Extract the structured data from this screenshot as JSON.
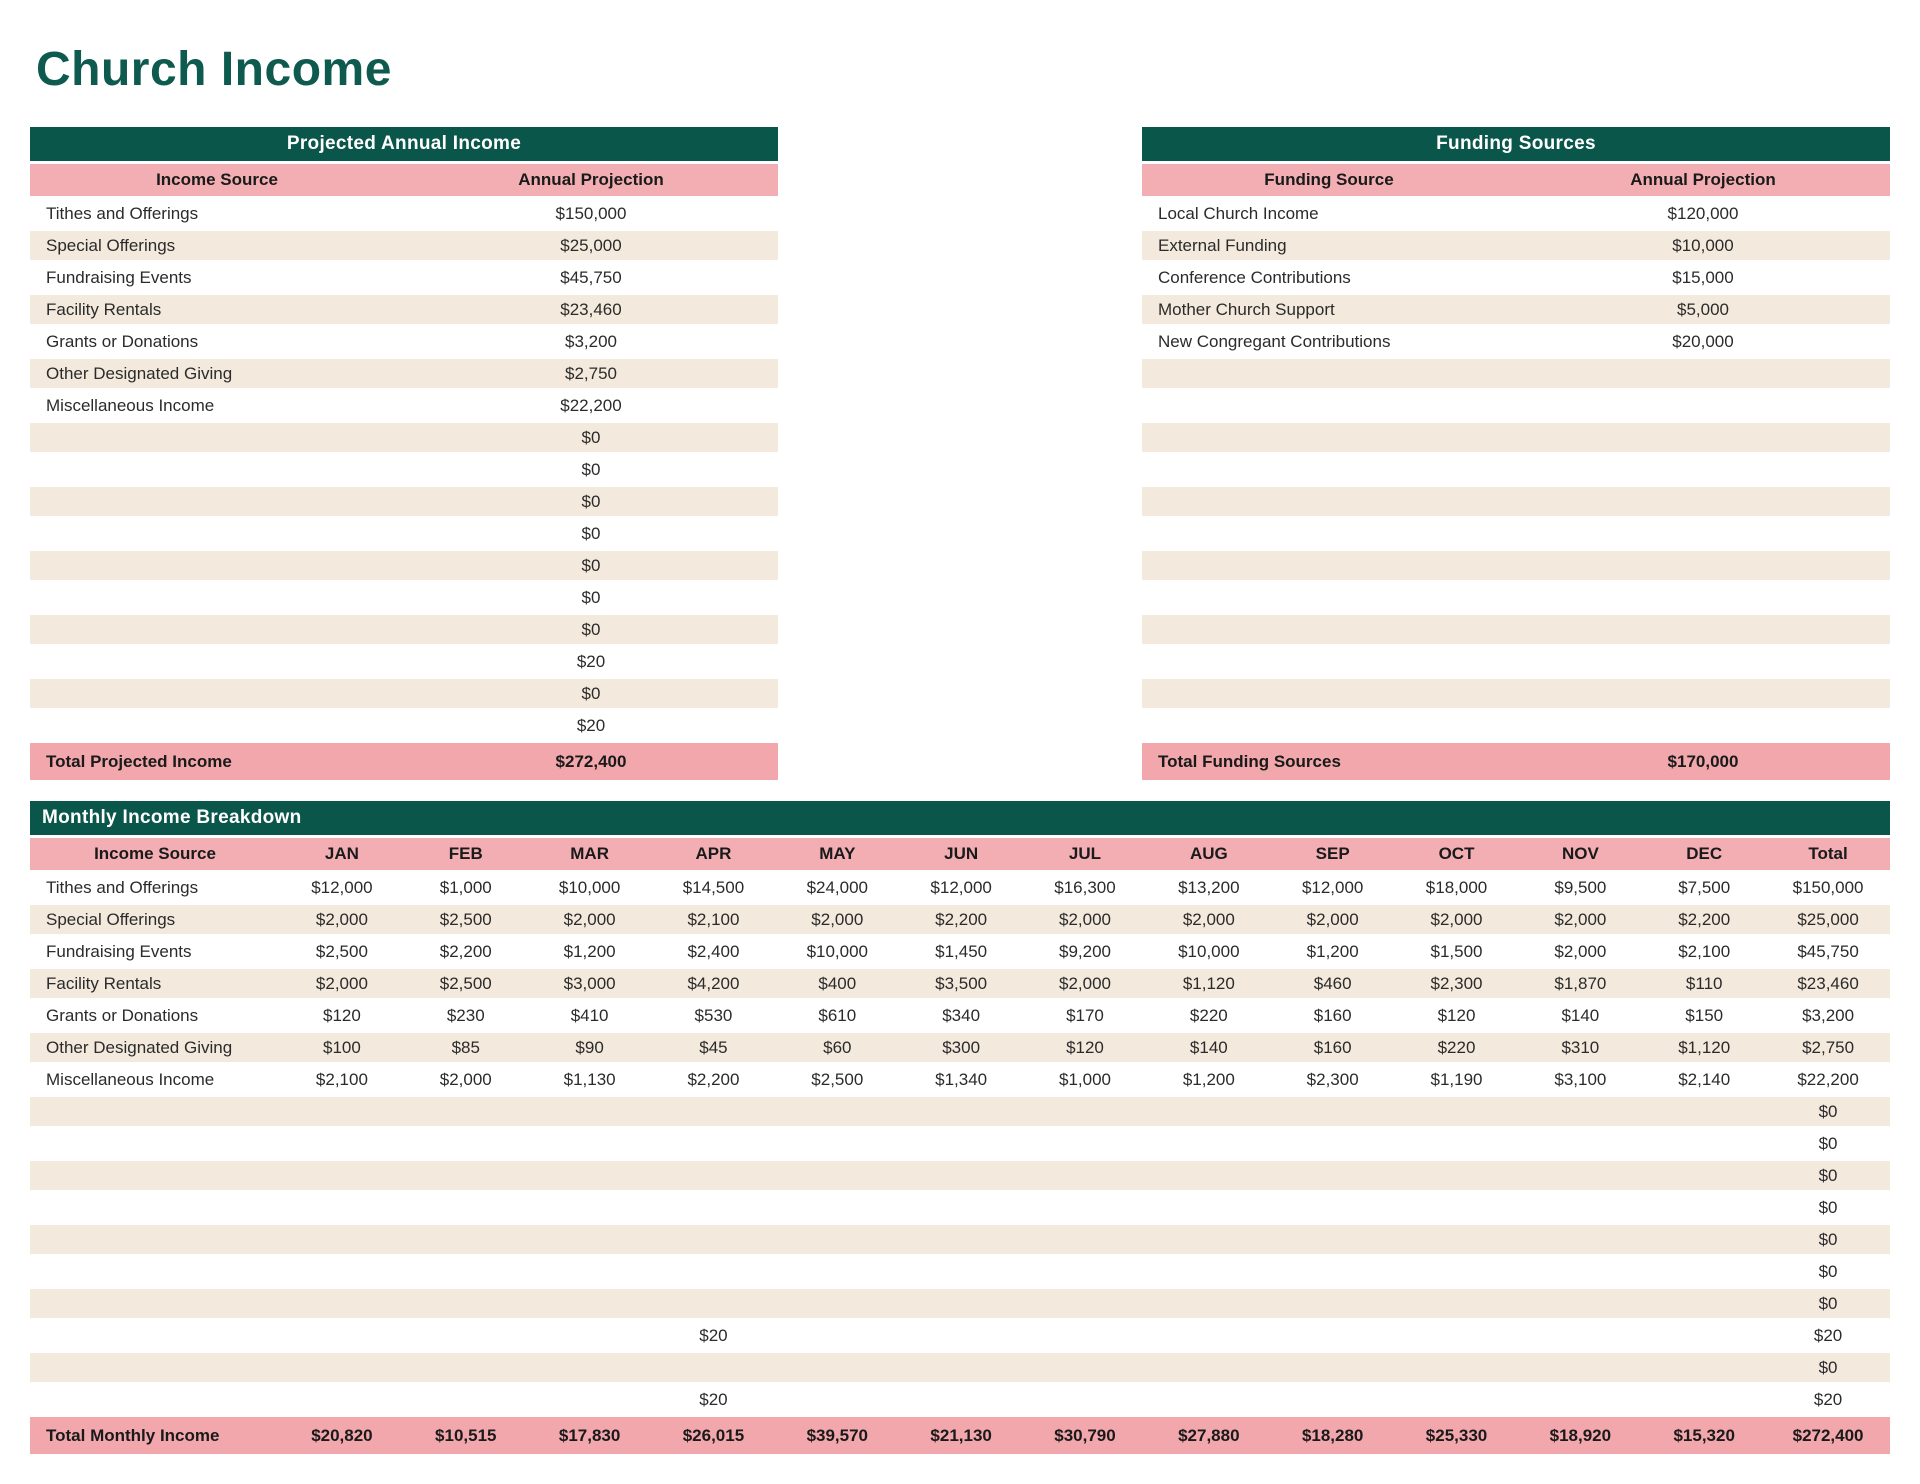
{
  "page_title": "Church Income",
  "colors": {
    "header_green": "#0b564b",
    "header_pink": "#f3aeb3",
    "total_pink": "#f1a7ac",
    "row_beige": "#f3e9dc",
    "title_green": "#0e5a4e"
  },
  "projected": {
    "title": "Projected Annual Income",
    "columns": [
      "Income Source",
      "Annual Projection"
    ],
    "rows": [
      {
        "label": "Tithes and Offerings",
        "value": "$150,000"
      },
      {
        "label": "Special Offerings",
        "value": "$25,000"
      },
      {
        "label": "Fundraising Events",
        "value": "$45,750"
      },
      {
        "label": "Facility Rentals",
        "value": "$23,460"
      },
      {
        "label": "Grants or Donations",
        "value": "$3,200"
      },
      {
        "label": "Other Designated Giving",
        "value": "$2,750"
      },
      {
        "label": "Miscellaneous Income",
        "value": "$22,200"
      },
      {
        "label": "",
        "value": "$0"
      },
      {
        "label": "",
        "value": "$0"
      },
      {
        "label": "",
        "value": "$0"
      },
      {
        "label": "",
        "value": "$0"
      },
      {
        "label": "",
        "value": "$0"
      },
      {
        "label": "",
        "value": "$0"
      },
      {
        "label": "",
        "value": "$0"
      },
      {
        "label": "",
        "value": "$20"
      },
      {
        "label": "",
        "value": "$0"
      },
      {
        "label": "",
        "value": "$20"
      }
    ],
    "total_rows": [
      {
        "label": "Total Projected Income",
        "value": "$272,400"
      }
    ]
  },
  "funding": {
    "title": "Funding Sources",
    "columns": [
      "Funding Source",
      "Annual Projection"
    ],
    "rows": [
      {
        "label": "Local Church Income",
        "value": "$120,000"
      },
      {
        "label": "External Funding",
        "value": "$10,000"
      },
      {
        "label": "Conference Contributions",
        "value": "$15,000"
      },
      {
        "label": "Mother Church Support",
        "value": "$5,000"
      },
      {
        "label": "New Congregant Contributions",
        "value": "$20,000"
      },
      {
        "label": "",
        "value": ""
      },
      {
        "label": "",
        "value": ""
      },
      {
        "label": "",
        "value": ""
      },
      {
        "label": "",
        "value": ""
      },
      {
        "label": "",
        "value": ""
      },
      {
        "label": "",
        "value": ""
      },
      {
        "label": "",
        "value": ""
      },
      {
        "label": "",
        "value": ""
      },
      {
        "label": "",
        "value": ""
      },
      {
        "label": "",
        "value": ""
      },
      {
        "label": "",
        "value": ""
      },
      {
        "label": "",
        "value": ""
      }
    ],
    "total_rows": [
      {
        "label": "Total Funding Sources",
        "value": "$170,000"
      }
    ]
  },
  "monthly": {
    "title": "Monthly Income Breakdown",
    "columns": [
      "Income Source",
      "JAN",
      "FEB",
      "MAR",
      "APR",
      "MAY",
      "JUN",
      "JUL",
      "AUG",
      "SEP",
      "OCT",
      "NOV",
      "DEC",
      "Total"
    ],
    "rows": [
      {
        "label": "Tithes and Offerings",
        "values": [
          "$12,000",
          "$1,000",
          "$10,000",
          "$14,500",
          "$24,000",
          "$12,000",
          "$16,300",
          "$13,200",
          "$12,000",
          "$18,000",
          "$9,500",
          "$7,500",
          "$150,000"
        ]
      },
      {
        "label": "Special Offerings",
        "values": [
          "$2,000",
          "$2,500",
          "$2,000",
          "$2,100",
          "$2,000",
          "$2,200",
          "$2,000",
          "$2,000",
          "$2,000",
          "$2,000",
          "$2,000",
          "$2,200",
          "$25,000"
        ]
      },
      {
        "label": "Fundraising Events",
        "values": [
          "$2,500",
          "$2,200",
          "$1,200",
          "$2,400",
          "$10,000",
          "$1,450",
          "$9,200",
          "$10,000",
          "$1,200",
          "$1,500",
          "$2,000",
          "$2,100",
          "$45,750"
        ]
      },
      {
        "label": "Facility Rentals",
        "values": [
          "$2,000",
          "$2,500",
          "$3,000",
          "$4,200",
          "$400",
          "$3,500",
          "$2,000",
          "$1,120",
          "$460",
          "$2,300",
          "$1,870",
          "$110",
          "$23,460"
        ]
      },
      {
        "label": "Grants or Donations",
        "values": [
          "$120",
          "$230",
          "$410",
          "$530",
          "$610",
          "$340",
          "$170",
          "$220",
          "$160",
          "$120",
          "$140",
          "$150",
          "$3,200"
        ]
      },
      {
        "label": "Other Designated Giving",
        "values": [
          "$100",
          "$85",
          "$90",
          "$45",
          "$60",
          "$300",
          "$120",
          "$140",
          "$160",
          "$220",
          "$310",
          "$1,120",
          "$2,750"
        ]
      },
      {
        "label": "Miscellaneous Income",
        "values": [
          "$2,100",
          "$2,000",
          "$1,130",
          "$2,200",
          "$2,500",
          "$1,340",
          "$1,000",
          "$1,200",
          "$2,300",
          "$1,190",
          "$3,100",
          "$2,140",
          "$22,200"
        ]
      },
      {
        "label": "",
        "values": [
          "",
          "",
          "",
          "",
          "",
          "",
          "",
          "",
          "",
          "",
          "",
          "",
          "$0"
        ]
      },
      {
        "label": "",
        "values": [
          "",
          "",
          "",
          "",
          "",
          "",
          "",
          "",
          "",
          "",
          "",
          "",
          "$0"
        ]
      },
      {
        "label": "",
        "values": [
          "",
          "",
          "",
          "",
          "",
          "",
          "",
          "",
          "",
          "",
          "",
          "",
          "$0"
        ]
      },
      {
        "label": "",
        "values": [
          "",
          "",
          "",
          "",
          "",
          "",
          "",
          "",
          "",
          "",
          "",
          "",
          "$0"
        ]
      },
      {
        "label": "",
        "values": [
          "",
          "",
          "",
          "",
          "",
          "",
          "",
          "",
          "",
          "",
          "",
          "",
          "$0"
        ]
      },
      {
        "label": "",
        "values": [
          "",
          "",
          "",
          "",
          "",
          "",
          "",
          "",
          "",
          "",
          "",
          "",
          "$0"
        ]
      },
      {
        "label": "",
        "values": [
          "",
          "",
          "",
          "",
          "",
          "",
          "",
          "",
          "",
          "",
          "",
          "",
          "$0"
        ]
      },
      {
        "label": "",
        "values": [
          "",
          "",
          "",
          "$20",
          "",
          "",
          "",
          "",
          "",
          "",
          "",
          "",
          "$20"
        ]
      },
      {
        "label": "",
        "values": [
          "",
          "",
          "",
          "",
          "",
          "",
          "",
          "",
          "",
          "",
          "",
          "",
          "$0"
        ]
      },
      {
        "label": "",
        "values": [
          "",
          "",
          "",
          "$20",
          "",
          "",
          "",
          "",
          "",
          "",
          "",
          "",
          "$20"
        ]
      }
    ],
    "total_rows": [
      {
        "label": "Total Monthly Income",
        "values": [
          "$20,820",
          "$10,515",
          "$17,830",
          "$26,015",
          "$39,570",
          "$21,130",
          "$30,790",
          "$27,880",
          "$18,280",
          "$25,330",
          "$18,920",
          "$15,320",
          "$272,400"
        ]
      }
    ]
  }
}
